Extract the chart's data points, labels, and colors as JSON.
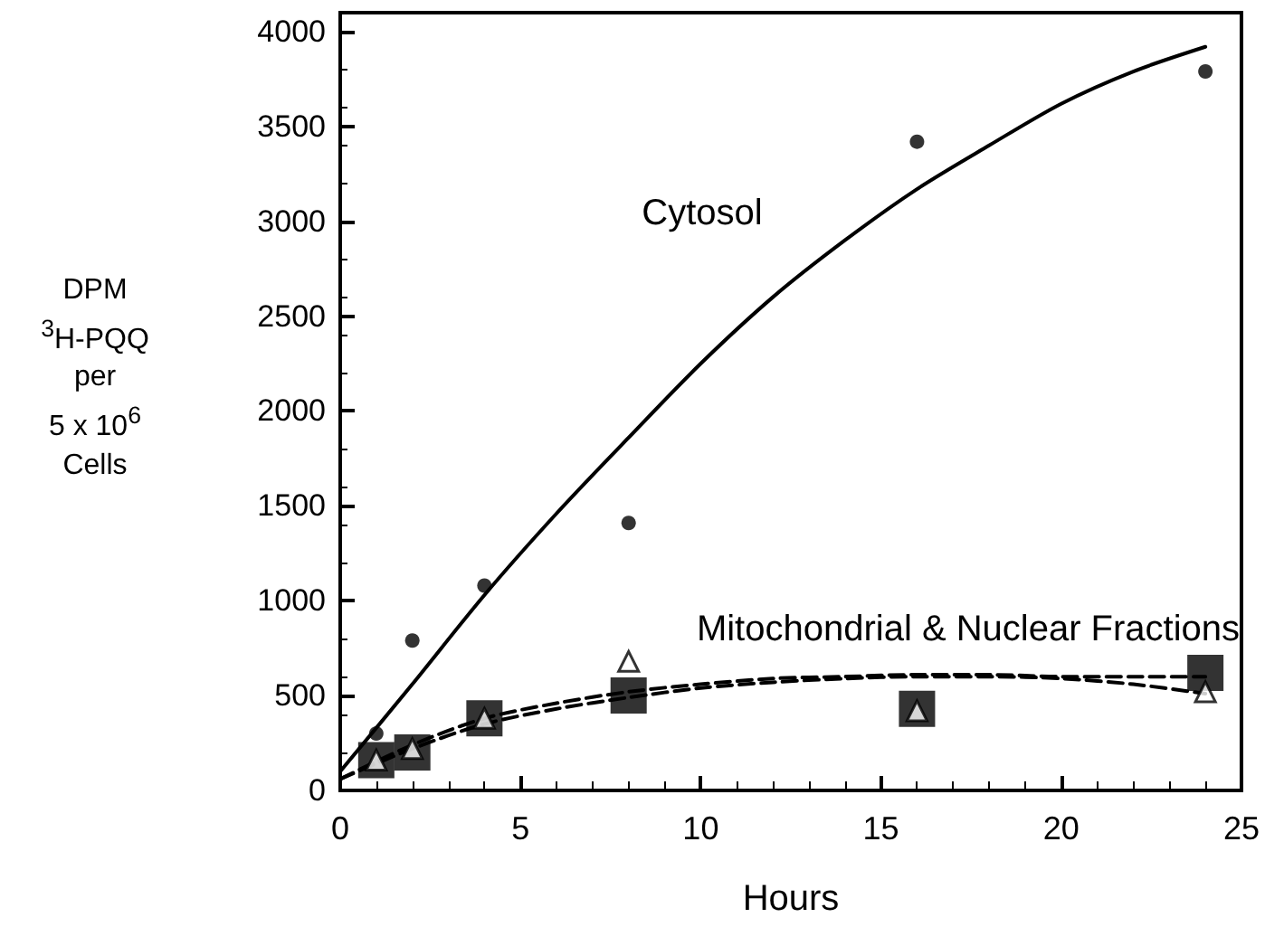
{
  "chart_data": {
    "type": "scatter",
    "xlabel": "Hours",
    "ylabel": "DPM\n$^{3}$H-PQQ\nper\n5 x 10$^{6}$\nCells",
    "xlim": [
      0,
      25
    ],
    "xticks": [
      0,
      5,
      10,
      15,
      20,
      25
    ],
    "ylim": [
      0,
      4100
    ],
    "yticks": [
      0,
      500,
      1000,
      1500,
      2000,
      2500,
      3000,
      3500,
      4000
    ],
    "grid": false,
    "annotations": [
      "Cytosol",
      "Mitochondrial & Nuclear Fractions"
    ],
    "series": [
      {
        "marker": "circle",
        "color": "#000000",
        "x": [
          1,
          2,
          4,
          8,
          16,
          24
        ],
        "values": [
          300,
          790,
          1080,
          1410,
          3420,
          3790
        ]
      },
      {
        "type": "line",
        "marker": "none",
        "line_style": "solid",
        "color": "#000000",
        "x": [
          0,
          2,
          4,
          6,
          8,
          10,
          12,
          14,
          16,
          18,
          20,
          22,
          24
        ],
        "values": [
          100,
          560,
          1030,
          1460,
          1860,
          2250,
          2600,
          2900,
          3170,
          3400,
          3620,
          3790,
          3920
        ]
      },
      {
        "type": "line",
        "marker": "none",
        "line_style": "dashed",
        "color": "#000000",
        "x": [
          0,
          2,
          4,
          6,
          8,
          10,
          12,
          14,
          16,
          18,
          20,
          22,
          24
        ],
        "values": [
          60,
          240,
          380,
          460,
          520,
          560,
          590,
          600,
          610,
          610,
          600,
          600,
          600
        ]
      },
      {
        "type": "line",
        "marker": "none",
        "line_style": "dashed",
        "color": "#000000",
        "x": [
          0,
          2,
          4,
          6,
          8,
          10,
          12,
          14,
          16,
          18,
          20,
          22,
          24
        ],
        "values": [
          60,
          220,
          350,
          430,
          490,
          540,
          570,
          590,
          600,
          600,
          590,
          560,
          510
        ]
      },
      {
        "marker": "square",
        "color": "#000000",
        "x": [
          1,
          2,
          4,
          8,
          16,
          24
        ],
        "values": [
          160,
          200,
          380,
          500,
          430,
          620
        ]
      },
      {
        "marker": "triangle",
        "color": "#ffffff",
        "x": [
          1,
          2,
          4,
          8,
          16,
          24
        ],
        "values": [
          160,
          220,
          380,
          680,
          420,
          520
        ]
      }
    ]
  }
}
